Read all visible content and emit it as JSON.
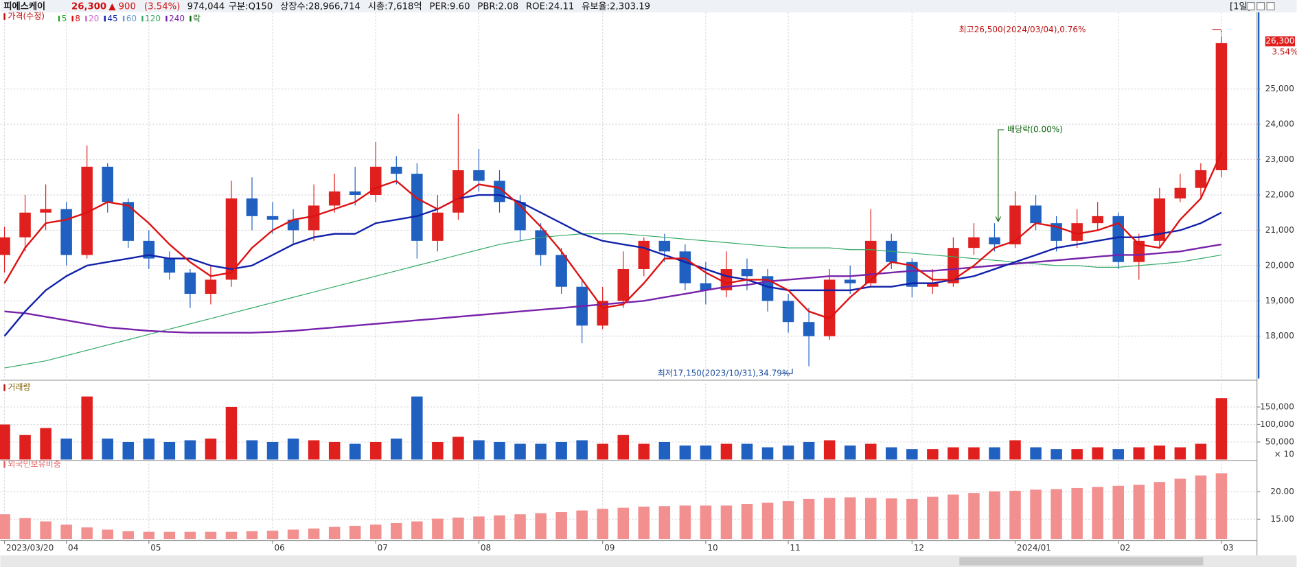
{
  "header": {
    "name": "피에스케이",
    "price": "26,300",
    "change": "▲ 900",
    "change_pct": "(3.54%)",
    "volume": "974,044",
    "info": [
      "구분:Q150",
      "상장수:28,966,714",
      "시총:7,618억",
      "PER:9.60",
      "PBR:2.08",
      "ROE:24.11",
      "유보율:2,303.19"
    ],
    "period": "[1일]"
  },
  "chart_data": [
    {
      "type": "candlestick",
      "title": "가격(수정)",
      "legend": [
        {
          "label": "5",
          "color": "#22aa22"
        },
        {
          "label": "8",
          "color": "#dd1111"
        },
        {
          "label": "20",
          "color": "#cc66cc"
        },
        {
          "label": "45",
          "color": "#1122aa"
        },
        {
          "label": "60",
          "color": "#6699cc"
        },
        {
          "label": "120",
          "color": "#33aa66"
        },
        {
          "label": "240",
          "color": "#7722aa"
        },
        {
          "label": "락",
          "color": "#116611"
        }
      ],
      "categories": [
        "2023/03/20",
        null,
        null,
        "04",
        null,
        null,
        null,
        "05",
        null,
        null,
        null,
        null,
        null,
        "06",
        null,
        null,
        null,
        null,
        "07",
        null,
        null,
        null,
        null,
        "08",
        null,
        null,
        null,
        null,
        null,
        "09",
        null,
        null,
        null,
        null,
        "10",
        null,
        null,
        null,
        "11",
        null,
        null,
        null,
        null,
        null,
        "12",
        null,
        null,
        null,
        null,
        "2024/01",
        null,
        null,
        null,
        null,
        "02",
        null,
        null,
        null,
        null,
        "03"
      ],
      "open": [
        20300,
        20800,
        21500,
        21600,
        20300,
        22800,
        21800,
        20700,
        20200,
        19800,
        19200,
        19600,
        21900,
        21400,
        21300,
        21000,
        21700,
        22100,
        22000,
        22800,
        22600,
        20700,
        21500,
        22700,
        22400,
        21800,
        21000,
        20300,
        19400,
        18300,
        19000,
        19900,
        20700,
        20400,
        19500,
        19300,
        19900,
        19700,
        19000,
        18400,
        18000,
        19600,
        19500,
        20700,
        20100,
        19400,
        19500,
        20500,
        20800,
        20600,
        21700,
        21200,
        20700,
        21200,
        21400,
        20100,
        20700,
        21900,
        22200,
        22700
      ],
      "high": [
        21100,
        22000,
        22300,
        21800,
        23400,
        22900,
        21900,
        21000,
        20400,
        19900,
        20000,
        22400,
        22500,
        21800,
        21600,
        22300,
        22600,
        22800,
        23500,
        23100,
        22900,
        22000,
        24300,
        23300,
        22700,
        22000,
        21200,
        20500,
        19600,
        19400,
        20400,
        20800,
        20900,
        20600,
        20100,
        20400,
        20200,
        19900,
        19200,
        18800,
        19900,
        20000,
        21600,
        20900,
        20200,
        19900,
        20800,
        21200,
        21200,
        22100,
        22000,
        21400,
        21600,
        21800,
        21500,
        20900,
        22200,
        22600,
        22900,
        26500
      ],
      "low": [
        19800,
        20400,
        21000,
        20000,
        20200,
        21500,
        20500,
        19900,
        19600,
        18800,
        18900,
        19400,
        21000,
        20900,
        20600,
        20700,
        21500,
        21700,
        21800,
        22300,
        20200,
        20400,
        21300,
        22100,
        21500,
        20700,
        20000,
        19200,
        17800,
        18200,
        18800,
        19700,
        20100,
        19300,
        18900,
        19100,
        19300,
        18700,
        18100,
        17150,
        17900,
        19200,
        19400,
        19900,
        19100,
        19200,
        19400,
        20300,
        20400,
        20500,
        21000,
        20400,
        20500,
        21000,
        19900,
        19600,
        20500,
        21800,
        21900,
        22500
      ],
      "close": [
        20800,
        21500,
        21600,
        20300,
        22800,
        21800,
        20700,
        20200,
        19800,
        19200,
        19600,
        21900,
        21400,
        21300,
        21000,
        21700,
        22100,
        22000,
        22800,
        22600,
        20700,
        21500,
        22700,
        22400,
        21800,
        21000,
        20300,
        19400,
        18300,
        19000,
        19900,
        20700,
        20400,
        19500,
        19300,
        19900,
        19700,
        19000,
        18400,
        18000,
        19600,
        19500,
        20700,
        20100,
        19400,
        19500,
        20500,
        20800,
        20600,
        21700,
        21200,
        20700,
        21200,
        21400,
        20100,
        20700,
        21900,
        22200,
        22700,
        26300
      ],
      "series": [
        {
          "name": "120",
          "color": "#33aa66",
          "width": 1,
          "values": [
            17100,
            17200,
            17300,
            17450,
            17600,
            17750,
            17900,
            18050,
            18200,
            18350,
            18500,
            18650,
            18800,
            18950,
            19100,
            19250,
            19400,
            19550,
            19700,
            19850,
            20000,
            20150,
            20300,
            20450,
            20600,
            20700,
            20800,
            20850,
            20900,
            20900,
            20900,
            20850,
            20800,
            20750,
            20700,
            20650,
            20600,
            20550,
            20500,
            20500,
            20500,
            20450,
            20450,
            20400,
            20350,
            20300,
            20250,
            20200,
            20150,
            20100,
            20050,
            20000,
            20000,
            19950,
            19950,
            20000,
            20050,
            20100,
            20200,
            20300
          ]
        },
        {
          "name": "240",
          "color": "#7722aa",
          "width": 2,
          "values": [
            18700,
            18650,
            18550,
            18450,
            18350,
            18250,
            18200,
            18150,
            18120,
            18100,
            18100,
            18100,
            18100,
            18120,
            18150,
            18200,
            18250,
            18300,
            18350,
            18400,
            18450,
            18500,
            18550,
            18600,
            18650,
            18700,
            18750,
            18800,
            18850,
            18900,
            18950,
            19000,
            19100,
            19200,
            19300,
            19400,
            19450,
            19550,
            19600,
            19650,
            19700,
            19700,
            19750,
            19800,
            19850,
            19850,
            19900,
            19950,
            20000,
            20050,
            20100,
            20150,
            20200,
            20250,
            20300,
            20300,
            20350,
            20400,
            20500,
            20600
          ]
        },
        {
          "name": "45",
          "color": "#1122aa",
          "width": 2,
          "values": [
            18000,
            18700,
            19300,
            19700,
            20000,
            20100,
            20200,
            20300,
            20200,
            20200,
            20000,
            19900,
            20000,
            20300,
            20600,
            20800,
            20900,
            20900,
            21200,
            21300,
            21400,
            21600,
            21900,
            22000,
            22000,
            21800,
            21500,
            21200,
            20900,
            20700,
            20600,
            20500,
            20300,
            20100,
            19900,
            19700,
            19600,
            19400,
            19300,
            19300,
            19300,
            19300,
            19400,
            19400,
            19500,
            19500,
            19600,
            19700,
            19900,
            20100,
            20300,
            20500,
            20600,
            20700,
            20800,
            20800,
            20900,
            21000,
            21200,
            21500
          ]
        },
        {
          "name": "8",
          "color": "#dd1111",
          "width": 2,
          "values": [
            19500,
            20500,
            21200,
            21300,
            21500,
            21800,
            21700,
            21200,
            20600,
            20100,
            19700,
            19800,
            20500,
            21000,
            21300,
            21400,
            21600,
            21800,
            22200,
            22400,
            21900,
            21600,
            21900,
            22300,
            22200,
            21700,
            21100,
            20400,
            19600,
            18800,
            18900,
            19500,
            20200,
            20200,
            19800,
            19500,
            19600,
            19600,
            19300,
            18700,
            18500,
            19100,
            19600,
            20100,
            20000,
            19600,
            19600,
            20000,
            20500,
            20700,
            21200,
            21100,
            20900,
            21000,
            21200,
            20600,
            20500,
            21300,
            21900,
            23200
          ]
        }
      ],
      "up_color": "#e0201f",
      "down_color": "#2060c0",
      "ylim": [
        16800,
        27100
      ],
      "yticks": [
        {
          "value": 18000,
          "label": "18,000"
        },
        {
          "value": 19000,
          "label": "19,000"
        },
        {
          "value": 20000,
          "label": "20,000"
        },
        {
          "value": 21000,
          "label": "21,000"
        },
        {
          "value": 22000,
          "label": "22,000"
        },
        {
          "value": 23000,
          "label": "23,000"
        },
        {
          "value": 24000,
          "label": "24,000"
        },
        {
          "value": 25000,
          "label": "25,000"
        }
      ],
      "annotations": {
        "high": "최고26,500(2024/03/04),0.76%",
        "low": "최저17,150(2023/10/31),34.79%",
        "dividend": "배당락(0.00%)",
        "last_pct": "3.54%"
      },
      "grid": true
    },
    {
      "type": "bar",
      "title": "거래량",
      "unit": "× 10",
      "values": [
        100000,
        70000,
        90000,
        60000,
        180000,
        60000,
        50000,
        60000,
        50000,
        55000,
        60000,
        150000,
        55000,
        50000,
        60000,
        55000,
        50000,
        45000,
        50000,
        60000,
        180000,
        50000,
        65000,
        55000,
        50000,
        45000,
        45000,
        50000,
        55000,
        45000,
        70000,
        45000,
        50000,
        40000,
        40000,
        45000,
        45000,
        35000,
        40000,
        50000,
        55000,
        40000,
        45000,
        35000,
        30000,
        30000,
        35000,
        35000,
        35000,
        55000,
        35000,
        30000,
        30000,
        35000,
        30000,
        35000,
        40000,
        35000,
        45000,
        175000
      ],
      "ylim": [
        0,
        210000
      ],
      "yticks": [
        {
          "value": 50000,
          "label": "50,000"
        },
        {
          "value": 100000,
          "label": "100,000"
        },
        {
          "value": 150000,
          "label": "150,000"
        }
      ]
    },
    {
      "type": "bar",
      "title": "외국인보유비중",
      "color": "#f29090",
      "values": [
        15.9,
        15.2,
        14.6,
        14.0,
        13.5,
        13.1,
        12.8,
        12.7,
        12.7,
        12.7,
        12.7,
        12.7,
        12.8,
        12.9,
        13.1,
        13.3,
        13.6,
        13.8,
        14.0,
        14.3,
        14.6,
        15.1,
        15.3,
        15.5,
        15.7,
        15.9,
        16.1,
        16.3,
        16.6,
        16.9,
        17.1,
        17.3,
        17.4,
        17.5,
        17.5,
        17.5,
        17.8,
        18.0,
        18.3,
        18.7,
        18.9,
        19.0,
        18.9,
        18.8,
        18.7,
        19.1,
        19.5,
        19.8,
        20.1,
        20.2,
        20.4,
        20.5,
        20.7,
        20.9,
        21.1,
        21.3,
        21.8,
        22.4,
        23.0,
        23.4
      ],
      "ylim": [
        11.4,
        25.3
      ],
      "yticks": [
        {
          "value": 15,
          "label": "15.00"
        },
        {
          "value": 20,
          "label": "20.00"
        }
      ]
    }
  ]
}
